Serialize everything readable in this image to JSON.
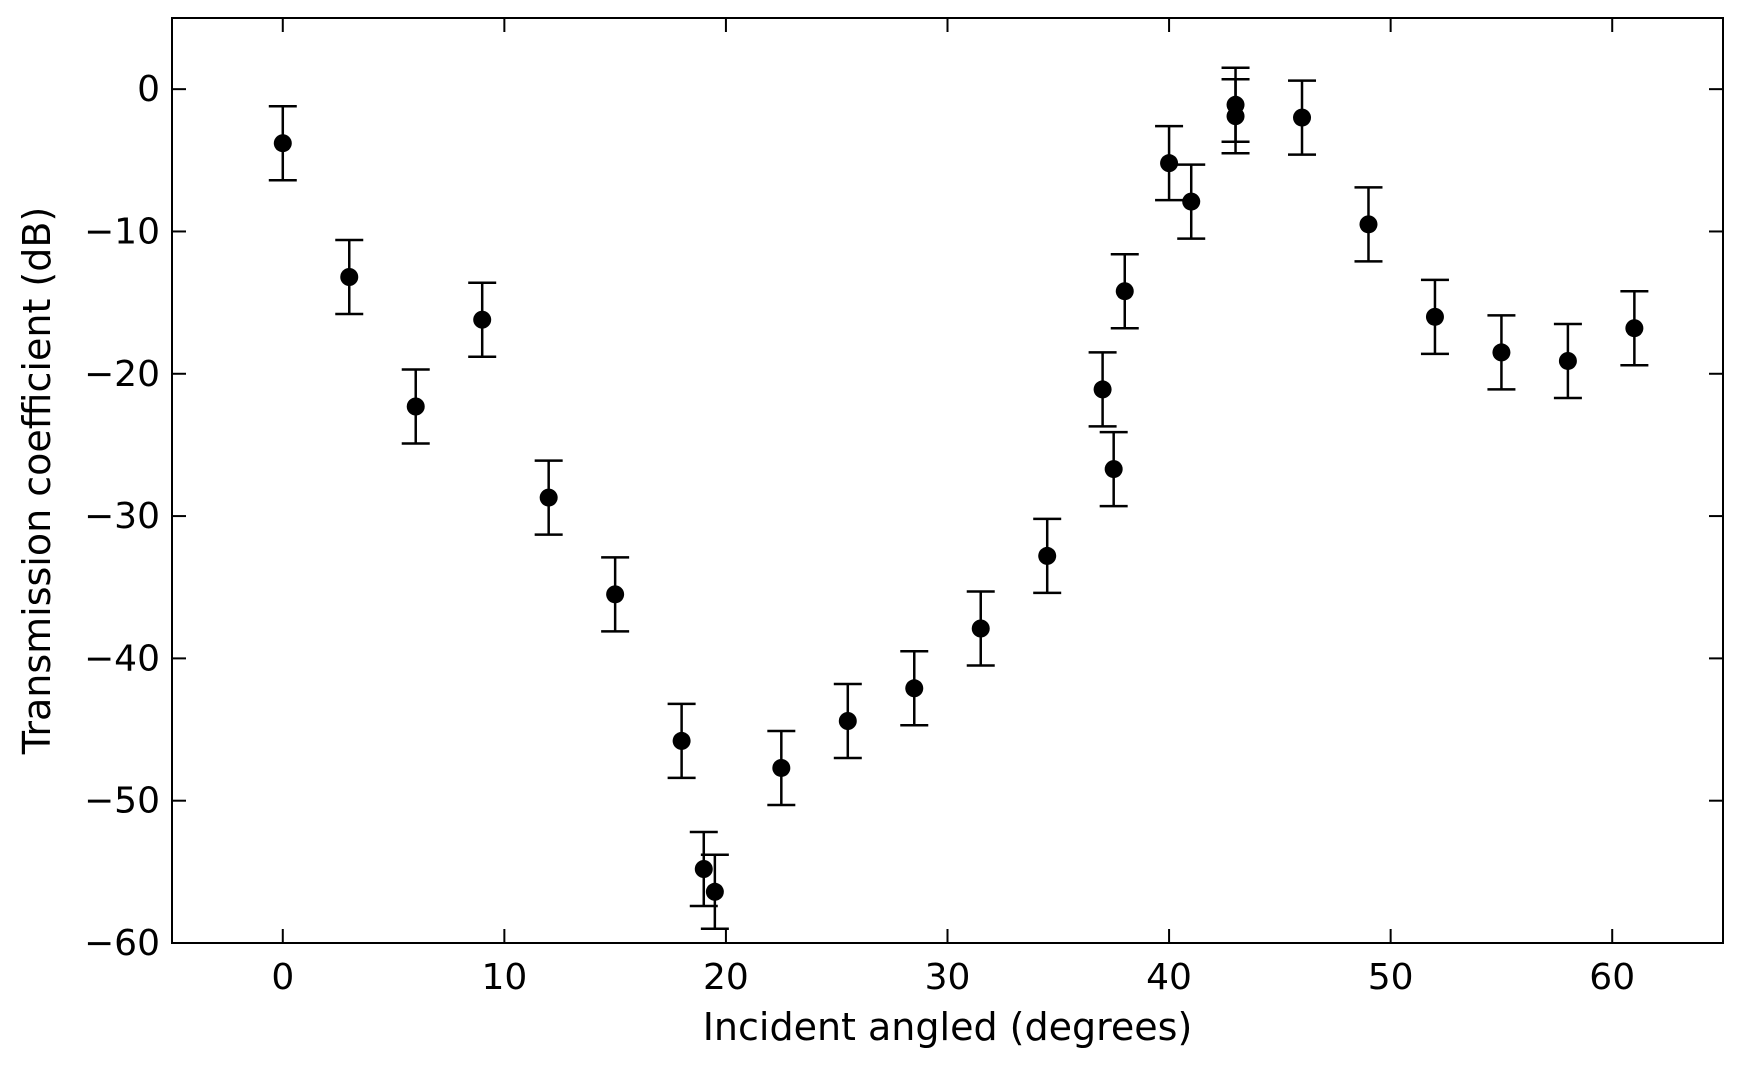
{
  "chart_data": {
    "type": "scatter",
    "title": "",
    "xlabel": "Incident angled (degrees)",
    "ylabel": "Transmission coefficient (dB)",
    "xlim": [
      -5,
      65
    ],
    "ylim": [
      -60,
      5
    ],
    "xticks": [
      0,
      10,
      20,
      30,
      40,
      50,
      60
    ],
    "yticks": [
      0,
      -10,
      -20,
      -30,
      -40,
      -50,
      -60
    ],
    "grid": false,
    "marker_color": "#000000",
    "error_bar_halfwidth_db": 2.6,
    "points": [
      {
        "x": 0,
        "y": -3.8
      },
      {
        "x": 3,
        "y": -13.2
      },
      {
        "x": 6,
        "y": -22.3
      },
      {
        "x": 9,
        "y": -16.2
      },
      {
        "x": 12,
        "y": -28.7
      },
      {
        "x": 15,
        "y": -35.5
      },
      {
        "x": 18,
        "y": -45.8
      },
      {
        "x": 19,
        "y": -54.8
      },
      {
        "x": 19.5,
        "y": -56.4
      },
      {
        "x": 22.5,
        "y": -47.7
      },
      {
        "x": 25.5,
        "y": -44.4
      },
      {
        "x": 28.5,
        "y": -42.1
      },
      {
        "x": 31.5,
        "y": -37.9
      },
      {
        "x": 34.5,
        "y": -32.8
      },
      {
        "x": 37,
        "y": -21.1
      },
      {
        "x": 37.5,
        "y": -26.7
      },
      {
        "x": 38,
        "y": -14.2
      },
      {
        "x": 40,
        "y": -5.2
      },
      {
        "x": 41,
        "y": -7.9
      },
      {
        "x": 43,
        "y": -1.1
      },
      {
        "x": 43,
        "y": -1.9
      },
      {
        "x": 46,
        "y": -2.0
      },
      {
        "x": 49,
        "y": -9.5
      },
      {
        "x": 52,
        "y": -16.0
      },
      {
        "x": 55,
        "y": -18.5
      },
      {
        "x": 58,
        "y": -19.1
      },
      {
        "x": 61,
        "y": -16.8
      }
    ]
  }
}
